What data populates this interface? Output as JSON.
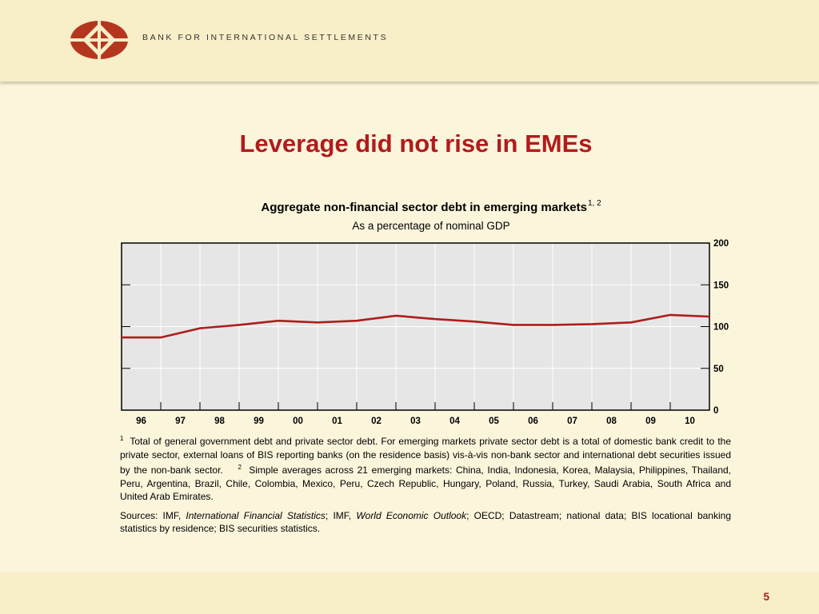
{
  "header": {
    "org_name": "BANK FOR INTERNATIONAL SETTLEMENTS"
  },
  "slide": {
    "title": "Leverage did not rise in EMEs",
    "page_number": "5"
  },
  "colors": {
    "accent": "#b01c1c",
    "background": "#fbf5dc",
    "plot_bg": "#e6e6e6",
    "series": "#b01c1c"
  },
  "chart_data": {
    "type": "line",
    "title": "Aggregate non-financial sector debt in emerging markets",
    "title_superscript": "1, 2",
    "subtitle": "As a percentage of nominal GDP",
    "xlabel": "",
    "ylabel": "",
    "x_tick_labels": [
      "96",
      "97",
      "98",
      "99",
      "00",
      "01",
      "02",
      "03",
      "04",
      "05",
      "06",
      "07",
      "08",
      "09",
      "10"
    ],
    "x_range": [
      1995.5,
      2010.5
    ],
    "ylim": [
      0,
      200
    ],
    "y_ticks": [
      0,
      50,
      100,
      150,
      200
    ],
    "y_axis_position": "right",
    "grid": true,
    "series": [
      {
        "name": "",
        "x": [
          1995.5,
          1996.5,
          1997.5,
          1998.5,
          1999.5,
          2000.5,
          2001.5,
          2002.5,
          2003.5,
          2004.5,
          2005.5,
          2006.5,
          2007.5,
          2008.5,
          2009.5,
          2010.5
        ],
        "values": [
          87,
          87,
          98,
          102,
          107,
          105,
          107,
          113,
          109,
          106,
          102,
          102,
          103,
          105,
          114,
          112
        ]
      }
    ]
  },
  "notes": {
    "n1_marker": "1",
    "n1_text": "Total of general government debt and private sector debt. For emerging markets private sector debt is a total of domestic bank credit to the private sector, external loans of BIS reporting banks (on the residence basis) vis-à-vis non-bank sector and international debt securities issued by the non-bank sector.",
    "n2_marker": "2",
    "n2_text": "Simple averages across 21 emerging markets: China, India, Indonesia, Korea, Malaysia, Philippines, Thailand, Peru, Argentina, Brazil, Chile, Colombia, Mexico, Peru, Czech Republic, Hungary, Poland, Russia, Turkey, Saudi Arabia, South Africa and United Arab Emirates.",
    "sources_a": "Sources: IMF, ",
    "sources_b": "International Financial Statistics",
    "sources_c": "; IMF, ",
    "sources_d": "World Economic Outlook",
    "sources_e": "; OECD; Datastream; national data; BIS locational banking statistics by residence; BIS securities statistics."
  }
}
